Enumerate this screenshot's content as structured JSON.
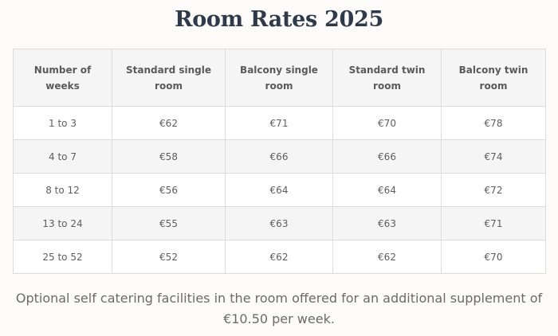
{
  "title": "Room Rates 2025",
  "table": {
    "headers": [
      "Number of weeks",
      "Standard single room",
      "Balcony single room",
      "Standard twin room",
      "Balcony twin room"
    ],
    "rows": [
      [
        "1 to 3",
        "€62",
        "€71",
        "€70",
        "€78"
      ],
      [
        "4 to 7",
        "€58",
        "€66",
        "€66",
        "€74"
      ],
      [
        "8 to 12",
        "€56",
        "€64",
        "€64",
        "€72"
      ],
      [
        "13 to 24",
        "€55",
        "€63",
        "€63",
        "€71"
      ],
      [
        "25 to 52",
        "€52",
        "€62",
        "€62",
        "€70"
      ]
    ]
  },
  "note": "Optional self catering facilities in the room offered for an additional supplement of €10.50 per week."
}
